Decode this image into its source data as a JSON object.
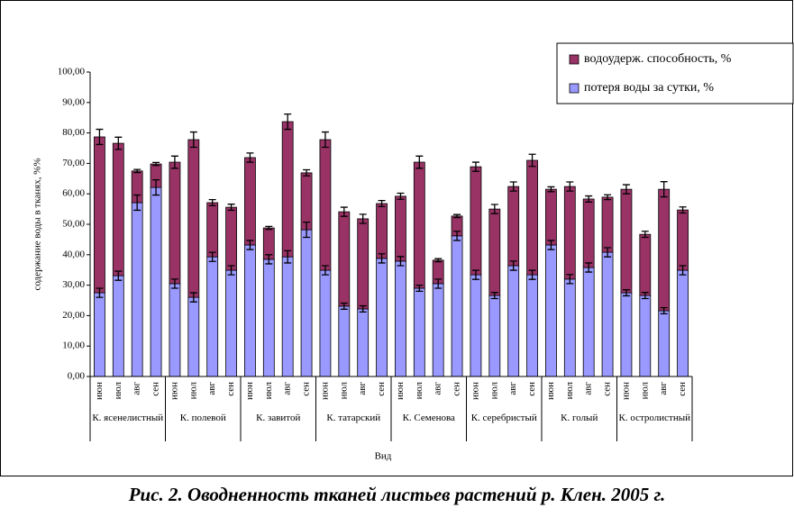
{
  "chart_data": {
    "type": "stacked_bar",
    "caption": "Рис. 2. Оводненность тканей листьев растений р. Клен. 2005 г.",
    "y_label": "содержание воды в тканях, %%",
    "x_label": "Вид",
    "categories": [
      "июн",
      "июл",
      "авг",
      "сен",
      "июн",
      "июл",
      "авг",
      "сен",
      "июн",
      "июл",
      "авг",
      "сен",
      "июн",
      "июл",
      "авг",
      "сен",
      "июн",
      "июл",
      "авг",
      "сен",
      "июн",
      "июл",
      "авг",
      "сен",
      "июн",
      "июл",
      "авг",
      "сен",
      "июн",
      "июл",
      "авг",
      "сен"
    ],
    "groups": [
      "К. ясенелистный",
      "К. полевой",
      "К. завитой",
      "К. татарский",
      "К. Семенова",
      "К. серебристый",
      "К. голый",
      "К. остролистный"
    ],
    "series": [
      {
        "name": "потеря воды за сутки, %",
        "color": "#9999ff",
        "values": [
          27.5,
          33.1,
          57.1,
          62.1,
          30.5,
          26,
          39.3,
          34.9,
          43.2,
          38.5,
          39.3,
          48.2,
          34.9,
          23.1,
          22.2,
          38.8,
          37.9,
          29,
          30.5,
          46.2,
          33.4,
          26.6,
          36.4,
          33.4,
          43.2,
          32,
          35.8,
          40.8,
          27.5,
          26.6,
          21.6,
          34.9
        ],
        "errors": [
          1.5,
          1.5,
          2.5,
          2.5,
          1.5,
          1.5,
          1.5,
          1.5,
          1.5,
          1.5,
          2,
          2.5,
          1.5,
          1,
          1,
          1.5,
          1.5,
          1,
          1.5,
          1.5,
          1.5,
          1,
          1.5,
          1.5,
          1.5,
          1.5,
          1.5,
          1.5,
          1,
          1,
          1,
          1.5
        ]
      },
      {
        "name": "водоудерж. способность, %",
        "color": "#993366",
        "values": [
          51.2,
          43.5,
          10.4,
          7.7,
          39.9,
          51.8,
          17.8,
          20.7,
          28.7,
          10.3,
          44.4,
          18.7,
          42.9,
          31,
          29.6,
          18,
          21.3,
          41.4,
          7.7,
          6.5,
          35.5,
          28.4,
          26,
          37.6,
          18.3,
          30.4,
          22.5,
          18.1,
          34,
          20.1,
          39.9,
          19.8
        ],
        "errors": [
          2.5,
          2,
          0.5,
          0.5,
          2,
          2.5,
          1,
          1,
          1.5,
          0.5,
          2.5,
          1,
          2.5,
          1.5,
          1.5,
          1,
          1,
          2,
          0.5,
          0.5,
          1.5,
          1.5,
          1.5,
          2,
          0.8,
          1.5,
          1,
          0.8,
          1.5,
          1,
          2.5,
          1
        ]
      }
    ],
    "ylim": [
      0,
      100
    ],
    "yticks": [
      {
        "value": 0,
        "label": "0,00"
      },
      {
        "value": 10,
        "label": "10,00"
      },
      {
        "value": 20,
        "label": "20,00"
      },
      {
        "value": 30,
        "label": "30,00"
      },
      {
        "value": 40,
        "label": "40,00"
      },
      {
        "value": 50,
        "label": "50,00"
      },
      {
        "value": 60,
        "label": "60,00"
      },
      {
        "value": 70,
        "label": "70,00"
      },
      {
        "value": 80,
        "label": "80,00"
      },
      {
        "value": 90,
        "label": "90,00"
      },
      {
        "value": 100,
        "label": "100,00"
      }
    ]
  }
}
